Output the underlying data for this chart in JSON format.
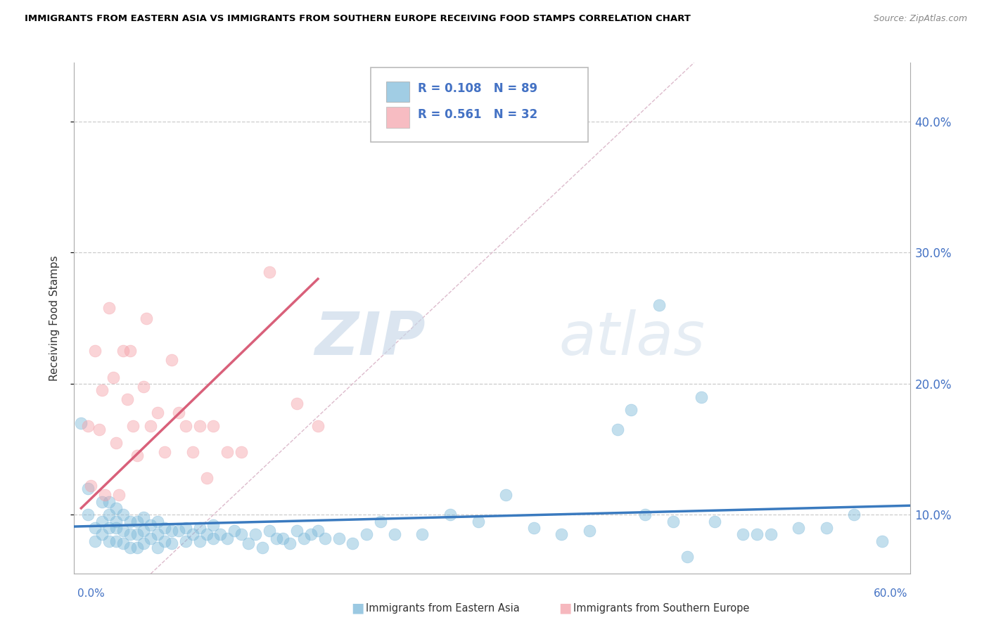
{
  "title": "IMMIGRANTS FROM EASTERN ASIA VS IMMIGRANTS FROM SOUTHERN EUROPE RECEIVING FOOD STAMPS CORRELATION CHART",
  "source": "Source: ZipAtlas.com",
  "ylabel": "Receiving Food Stamps",
  "yticks": [
    0.1,
    0.2,
    0.3,
    0.4
  ],
  "ytick_labels": [
    "10.0%",
    "20.0%",
    "30.0%",
    "40.0%"
  ],
  "xlim": [
    0.0,
    0.6
  ],
  "ylim": [
    0.055,
    0.445
  ],
  "legend_r1": "R = 0.108",
  "legend_n1": "N = 89",
  "legend_r2": "R = 0.561",
  "legend_n2": "N = 32",
  "color_blue": "#7ab8d9",
  "color_pink": "#f4a0a8",
  "color_blue_line": "#3a7abf",
  "color_pink_line": "#d9607a",
  "color_diag_line": "#cccccc",
  "watermark_zip": "ZIP",
  "watermark_atlas": "atlas",
  "blue_x": [
    0.005,
    0.01,
    0.01,
    0.015,
    0.015,
    0.02,
    0.02,
    0.02,
    0.025,
    0.025,
    0.025,
    0.025,
    0.03,
    0.03,
    0.03,
    0.03,
    0.035,
    0.035,
    0.035,
    0.04,
    0.04,
    0.04,
    0.045,
    0.045,
    0.045,
    0.05,
    0.05,
    0.05,
    0.055,
    0.055,
    0.06,
    0.06,
    0.06,
    0.065,
    0.065,
    0.07,
    0.07,
    0.075,
    0.08,
    0.08,
    0.085,
    0.09,
    0.09,
    0.095,
    0.1,
    0.1,
    0.105,
    0.11,
    0.115,
    0.12,
    0.125,
    0.13,
    0.135,
    0.14,
    0.145,
    0.15,
    0.155,
    0.16,
    0.165,
    0.17,
    0.175,
    0.18,
    0.19,
    0.2,
    0.21,
    0.22,
    0.23,
    0.25,
    0.27,
    0.29,
    0.31,
    0.33,
    0.35,
    0.37,
    0.39,
    0.4,
    0.41,
    0.42,
    0.43,
    0.44,
    0.45,
    0.46,
    0.48,
    0.49,
    0.5,
    0.52,
    0.54,
    0.56,
    0.58
  ],
  "blue_y": [
    0.17,
    0.12,
    0.1,
    0.09,
    0.08,
    0.11,
    0.095,
    0.085,
    0.11,
    0.1,
    0.09,
    0.08,
    0.105,
    0.095,
    0.09,
    0.08,
    0.1,
    0.088,
    0.078,
    0.095,
    0.085,
    0.075,
    0.095,
    0.085,
    0.075,
    0.098,
    0.088,
    0.078,
    0.092,
    0.082,
    0.095,
    0.085,
    0.075,
    0.09,
    0.08,
    0.088,
    0.078,
    0.088,
    0.09,
    0.08,
    0.085,
    0.09,
    0.08,
    0.085,
    0.092,
    0.082,
    0.085,
    0.082,
    0.088,
    0.085,
    0.078,
    0.085,
    0.075,
    0.088,
    0.082,
    0.082,
    0.078,
    0.088,
    0.082,
    0.085,
    0.088,
    0.082,
    0.082,
    0.078,
    0.085,
    0.095,
    0.085,
    0.085,
    0.1,
    0.095,
    0.115,
    0.09,
    0.085,
    0.088,
    0.165,
    0.18,
    0.1,
    0.26,
    0.095,
    0.068,
    0.19,
    0.095,
    0.085,
    0.085,
    0.085,
    0.09,
    0.09,
    0.1,
    0.08
  ],
  "pink_x": [
    0.01,
    0.012,
    0.015,
    0.018,
    0.02,
    0.022,
    0.025,
    0.028,
    0.03,
    0.032,
    0.035,
    0.038,
    0.04,
    0.042,
    0.045,
    0.05,
    0.052,
    0.055,
    0.06,
    0.065,
    0.07,
    0.075,
    0.08,
    0.085,
    0.09,
    0.095,
    0.1,
    0.11,
    0.12,
    0.14,
    0.16,
    0.175
  ],
  "pink_y": [
    0.168,
    0.122,
    0.225,
    0.165,
    0.195,
    0.115,
    0.258,
    0.205,
    0.155,
    0.115,
    0.225,
    0.188,
    0.225,
    0.168,
    0.145,
    0.198,
    0.25,
    0.168,
    0.178,
    0.148,
    0.218,
    0.178,
    0.168,
    0.148,
    0.168,
    0.128,
    0.168,
    0.148,
    0.148,
    0.285,
    0.185,
    0.168
  ],
  "blue_trend_x": [
    0.0,
    0.6
  ],
  "blue_trend_y": [
    0.091,
    0.107
  ],
  "pink_trend_x": [
    0.005,
    0.175
  ],
  "pink_trend_y": [
    0.105,
    0.28
  ],
  "diag_line_x": [
    0.055,
    0.445
  ],
  "diag_line_y": [
    0.055,
    0.445
  ]
}
